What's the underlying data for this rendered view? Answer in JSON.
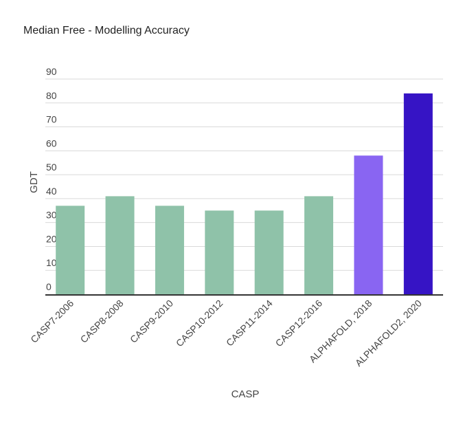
{
  "chart_data": {
    "type": "bar",
    "title": "Median Free - Modelling Accuracy",
    "xlabel": "CASP",
    "ylabel": "GDT",
    "categories": [
      "CASP7-2006",
      "CASP8-2008",
      "CASP9-2010",
      "CASP10-2012",
      "CASP11-2014",
      "CASP12-2016",
      "ALPHAFOLD, 2018",
      "ALPHAFOLD2, 2020"
    ],
    "values": [
      37,
      41,
      37,
      35,
      35,
      41,
      58,
      84
    ],
    "colors": [
      "#8fc2a9",
      "#8fc2a9",
      "#8fc2a9",
      "#8fc2a9",
      "#8fc2a9",
      "#8fc2a9",
      "#8965f2",
      "#3614c5"
    ],
    "yticks": [
      0,
      10,
      20,
      30,
      40,
      50,
      60,
      70,
      80,
      90
    ],
    "ylim": [
      0,
      90
    ],
    "grid": true,
    "legend": "none"
  }
}
